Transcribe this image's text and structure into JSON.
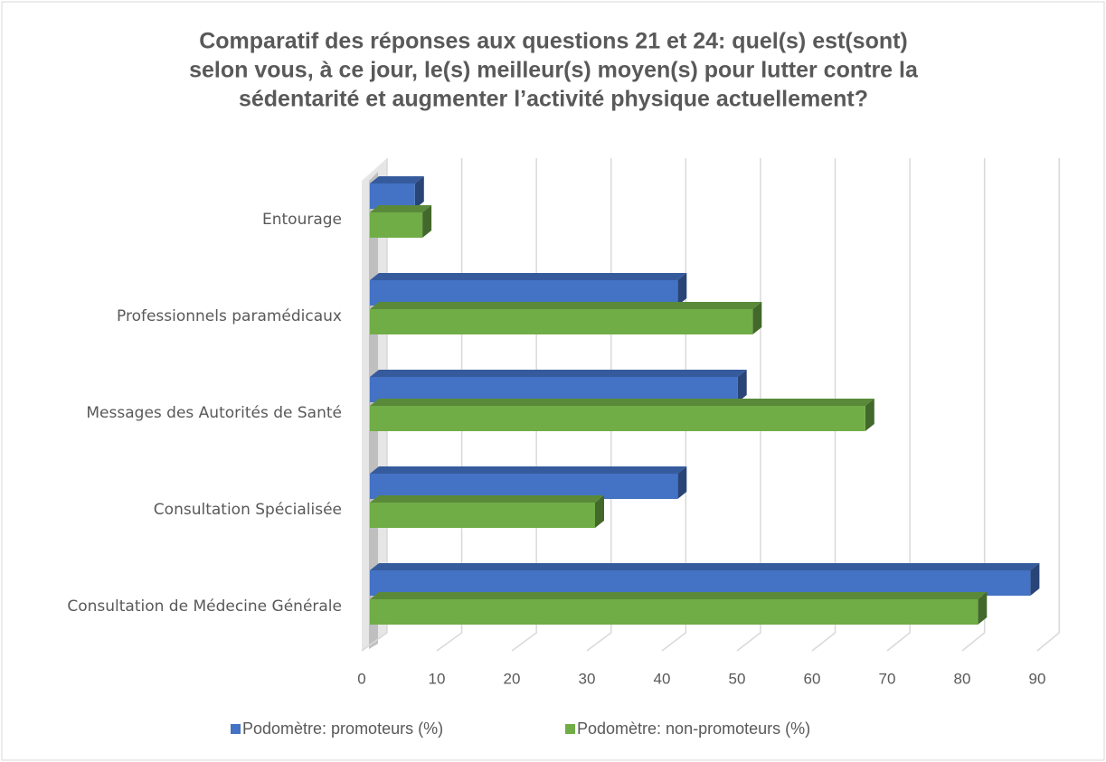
{
  "chart_data": {
    "type": "bar3d_horizontal",
    "title": [
      "Comparatif des réponses aux questions 21 et 24: quel(s) est(sont)",
      "selon vous, à ce jour, le(s) meilleur(s) moyen(s) pour lutter contre la",
      "sédentarité et augmenter l’activité physique actuellement?"
    ],
    "categories": [
      "Entourage",
      "Professionnels paramédicaux",
      "Messages des Autorités de Santé",
      "Consultation Spécialisée",
      "Consultation de Médecine Générale"
    ],
    "series": [
      {
        "name": "Podomètre: promoteurs (%)",
        "color": "#4472c4",
        "values": [
          6,
          41,
          49,
          41,
          88
        ]
      },
      {
        "name": "Podomètre: non-promoteurs (%)",
        "color": "#70ad47",
        "values": [
          7,
          51,
          66,
          30,
          81
        ]
      }
    ],
    "xlim": [
      0,
      90
    ],
    "xticks": [
      0,
      10,
      20,
      30,
      40,
      50,
      60,
      70,
      80,
      90
    ],
    "grid": true,
    "legend": "bottom"
  }
}
